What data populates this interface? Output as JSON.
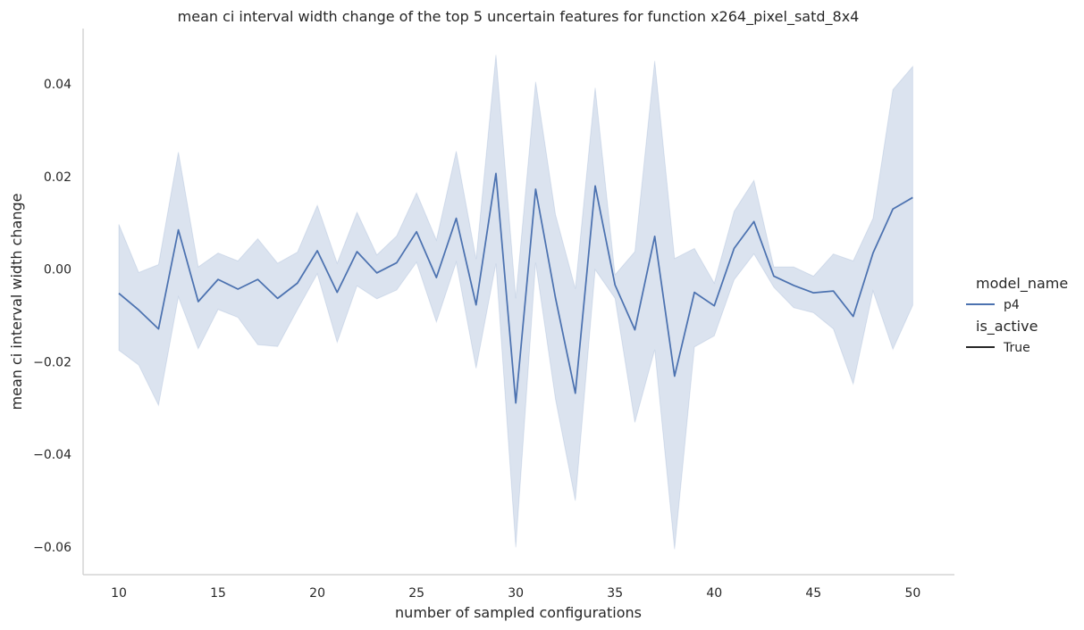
{
  "chart_data": {
    "type": "line",
    "title": "mean ci interval width change of the top 5 uncertain features for function x264_pixel_satd_8x4",
    "xlabel": "number of sampled configurations",
    "ylabel": "mean ci interval width change",
    "xlim": [
      8.2,
      52.1
    ],
    "ylim": [
      -0.066,
      0.052
    ],
    "xticks": [
      10,
      15,
      20,
      25,
      30,
      35,
      40,
      45,
      50
    ],
    "xtick_labels": [
      "10",
      "15",
      "20",
      "25",
      "30",
      "35",
      "40",
      "45",
      "50"
    ],
    "yticks": [
      -0.06,
      -0.04,
      -0.02,
      0.0,
      0.02,
      0.04
    ],
    "ytick_labels": [
      "−0.06",
      "−0.04",
      "−0.02",
      "0.00",
      "0.02",
      "0.04"
    ],
    "grid": false,
    "legend_position": "right",
    "legend": {
      "hue_title": "model_name",
      "hue_entries": [
        {
          "label": "p4",
          "color": "#4c72b0"
        }
      ],
      "style_title": "is_active",
      "style_entries": [
        {
          "label": "True",
          "color": "#262626"
        }
      ]
    },
    "series": [
      {
        "name": "p4",
        "color": "#4c72b0",
        "band_color": "#4c72b0",
        "band_opacity": 0.2,
        "x": [
          10,
          11,
          12,
          13,
          14,
          15,
          16,
          17,
          18,
          19,
          20,
          21,
          22,
          23,
          24,
          25,
          26,
          27,
          28,
          29,
          30,
          31,
          32,
          33,
          34,
          35,
          36,
          37,
          38,
          39,
          40,
          41,
          42,
          43,
          44,
          45,
          46,
          47,
          48,
          49,
          50
        ],
        "y": [
          -0.0052,
          -0.0088,
          -0.0129,
          0.0085,
          -0.007,
          -0.0022,
          -0.0043,
          -0.0022,
          -0.0063,
          -0.003,
          0.004,
          -0.005,
          0.0038,
          -0.0008,
          0.0014,
          0.0081,
          -0.0018,
          0.011,
          -0.0077,
          0.0207,
          -0.0289,
          0.0173,
          -0.0062,
          -0.0268,
          0.018,
          -0.0034,
          -0.0131,
          0.0071,
          -0.0231,
          -0.005,
          -0.0079,
          0.0045,
          0.0103,
          -0.0015,
          -0.0035,
          -0.0051,
          -0.0047,
          -0.0102,
          0.0035,
          0.013,
          0.0155
        ],
        "ci_upper": [
          0.0097,
          -0.0007,
          0.001,
          0.0253,
          0.0005,
          0.0035,
          0.0018,
          0.0066,
          0.0013,
          0.0037,
          0.0138,
          0.0013,
          0.0123,
          0.0031,
          0.0072,
          0.0165,
          0.0063,
          0.0255,
          0.0022,
          0.0463,
          -0.0063,
          0.0405,
          0.0118,
          -0.0042,
          0.0392,
          -0.0012,
          0.0038,
          0.045,
          0.0023,
          0.0045,
          -0.003,
          0.0125,
          0.0192,
          0.0005,
          0.0005,
          -0.0015,
          0.0033,
          0.0018,
          0.011,
          0.0388,
          0.0438
        ],
        "ci_lower": [
          -0.0175,
          -0.0207,
          -0.0294,
          -0.006,
          -0.0172,
          -0.0087,
          -0.0104,
          -0.0163,
          -0.0167,
          -0.0087,
          -0.001,
          -0.0158,
          -0.0036,
          -0.0064,
          -0.0045,
          0.0015,
          -0.0114,
          0.0015,
          -0.0214,
          0.0012,
          -0.0601,
          0.0014,
          -0.0281,
          -0.05,
          -0.0001,
          -0.0063,
          -0.0331,
          -0.0174,
          -0.0605,
          -0.0168,
          -0.0144,
          -0.0023,
          0.0033,
          -0.0039,
          -0.0083,
          -0.0094,
          -0.0129,
          -0.0248,
          -0.0047,
          -0.0173,
          -0.0078
        ]
      }
    ]
  }
}
